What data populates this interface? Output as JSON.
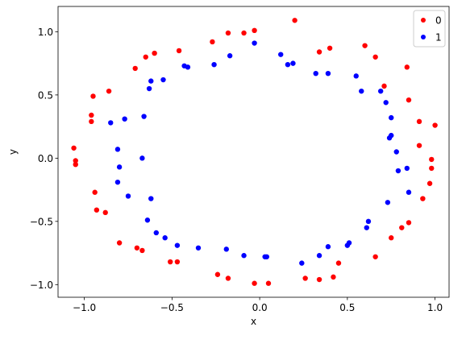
{
  "chart_data": {
    "type": "scatter",
    "title": "",
    "xlabel": "x",
    "ylabel": "y",
    "xlim": [
      -1.15,
      1.08
    ],
    "ylim": [
      -1.1,
      1.2
    ],
    "xticks": [
      -1.0,
      -0.5,
      0.0,
      0.5,
      1.0
    ],
    "yticks": [
      -1.0,
      -0.5,
      0.0,
      0.5,
      1.0
    ],
    "grid": false,
    "legend": "top-right",
    "series": [
      {
        "name": "0",
        "color": "#ff0000",
        "points": [
          [
            -1.06,
            0.08
          ],
          [
            -1.05,
            -0.02
          ],
          [
            -1.05,
            -0.05
          ],
          [
            -0.95,
            0.49
          ],
          [
            -0.96,
            0.34
          ],
          [
            -0.96,
            0.29
          ],
          [
            -0.94,
            -0.27
          ],
          [
            -0.93,
            -0.41
          ],
          [
            -0.88,
            -0.43
          ],
          [
            -0.86,
            0.53
          ],
          [
            -0.8,
            -0.67
          ],
          [
            -0.71,
            0.71
          ],
          [
            -0.7,
            -0.71
          ],
          [
            -0.67,
            -0.73
          ],
          [
            -0.65,
            0.8
          ],
          [
            -0.6,
            0.83
          ],
          [
            -0.51,
            -0.82
          ],
          [
            -0.47,
            -0.82
          ],
          [
            -0.46,
            0.85
          ],
          [
            -0.27,
            0.92
          ],
          [
            -0.24,
            -0.92
          ],
          [
            -0.18,
            0.99
          ],
          [
            -0.18,
            -0.95
          ],
          [
            -0.09,
            0.99
          ],
          [
            -0.03,
            1.01
          ],
          [
            -0.03,
            -0.99
          ],
          [
            0.05,
            -0.99
          ],
          [
            0.2,
            1.09
          ],
          [
            0.26,
            -0.95
          ],
          [
            0.34,
            -0.96
          ],
          [
            0.34,
            0.84
          ],
          [
            0.4,
            0.87
          ],
          [
            0.42,
            -0.94
          ],
          [
            0.45,
            -0.83
          ],
          [
            0.6,
            0.89
          ],
          [
            0.66,
            0.8
          ],
          [
            0.66,
            -0.78
          ],
          [
            0.71,
            0.57
          ],
          [
            0.75,
            -0.63
          ],
          [
            0.81,
            -0.55
          ],
          [
            0.84,
            0.72
          ],
          [
            0.85,
            0.46
          ],
          [
            0.85,
            -0.51
          ],
          [
            0.91,
            0.29
          ],
          [
            0.91,
            0.1
          ],
          [
            0.93,
            -0.32
          ],
          [
            0.97,
            -0.2
          ],
          [
            0.98,
            -0.01
          ],
          [
            0.98,
            -0.08
          ],
          [
            1.0,
            0.26
          ]
        ]
      },
      {
        "name": "1",
        "color": "#0000ff",
        "points": [
          [
            -0.85,
            0.28
          ],
          [
            -0.81,
            0.07
          ],
          [
            -0.81,
            -0.19
          ],
          [
            -0.8,
            -0.07
          ],
          [
            -0.77,
            0.31
          ],
          [
            -0.75,
            -0.3
          ],
          [
            -0.67,
            0.0
          ],
          [
            -0.66,
            0.33
          ],
          [
            -0.64,
            -0.49
          ],
          [
            -0.63,
            0.55
          ],
          [
            -0.62,
            0.61
          ],
          [
            -0.62,
            -0.32
          ],
          [
            -0.59,
            -0.59
          ],
          [
            -0.55,
            0.62
          ],
          [
            -0.54,
            -0.63
          ],
          [
            -0.47,
            -0.69
          ],
          [
            -0.43,
            0.73
          ],
          [
            -0.41,
            0.72
          ],
          [
            -0.35,
            -0.71
          ],
          [
            -0.26,
            0.74
          ],
          [
            -0.19,
            -0.72
          ],
          [
            -0.17,
            0.81
          ],
          [
            -0.09,
            -0.77
          ],
          [
            -0.03,
            0.91
          ],
          [
            0.03,
            -0.78
          ],
          [
            0.04,
            -0.78
          ],
          [
            0.12,
            0.82
          ],
          [
            0.16,
            0.74
          ],
          [
            0.19,
            0.75
          ],
          [
            0.24,
            -0.83
          ],
          [
            0.32,
            0.67
          ],
          [
            0.34,
            -0.77
          ],
          [
            0.39,
            0.67
          ],
          [
            0.39,
            -0.7
          ],
          [
            0.5,
            -0.69
          ],
          [
            0.51,
            -0.67
          ],
          [
            0.55,
            0.65
          ],
          [
            0.58,
            0.53
          ],
          [
            0.61,
            -0.55
          ],
          [
            0.62,
            -0.5
          ],
          [
            0.69,
            0.53
          ],
          [
            0.72,
            0.44
          ],
          [
            0.73,
            -0.35
          ],
          [
            0.74,
            0.16
          ],
          [
            0.75,
            0.18
          ],
          [
            0.75,
            0.32
          ],
          [
            0.78,
            0.05
          ],
          [
            0.79,
            -0.1
          ],
          [
            0.84,
            -0.08
          ],
          [
            0.85,
            -0.27
          ]
        ]
      }
    ]
  }
}
